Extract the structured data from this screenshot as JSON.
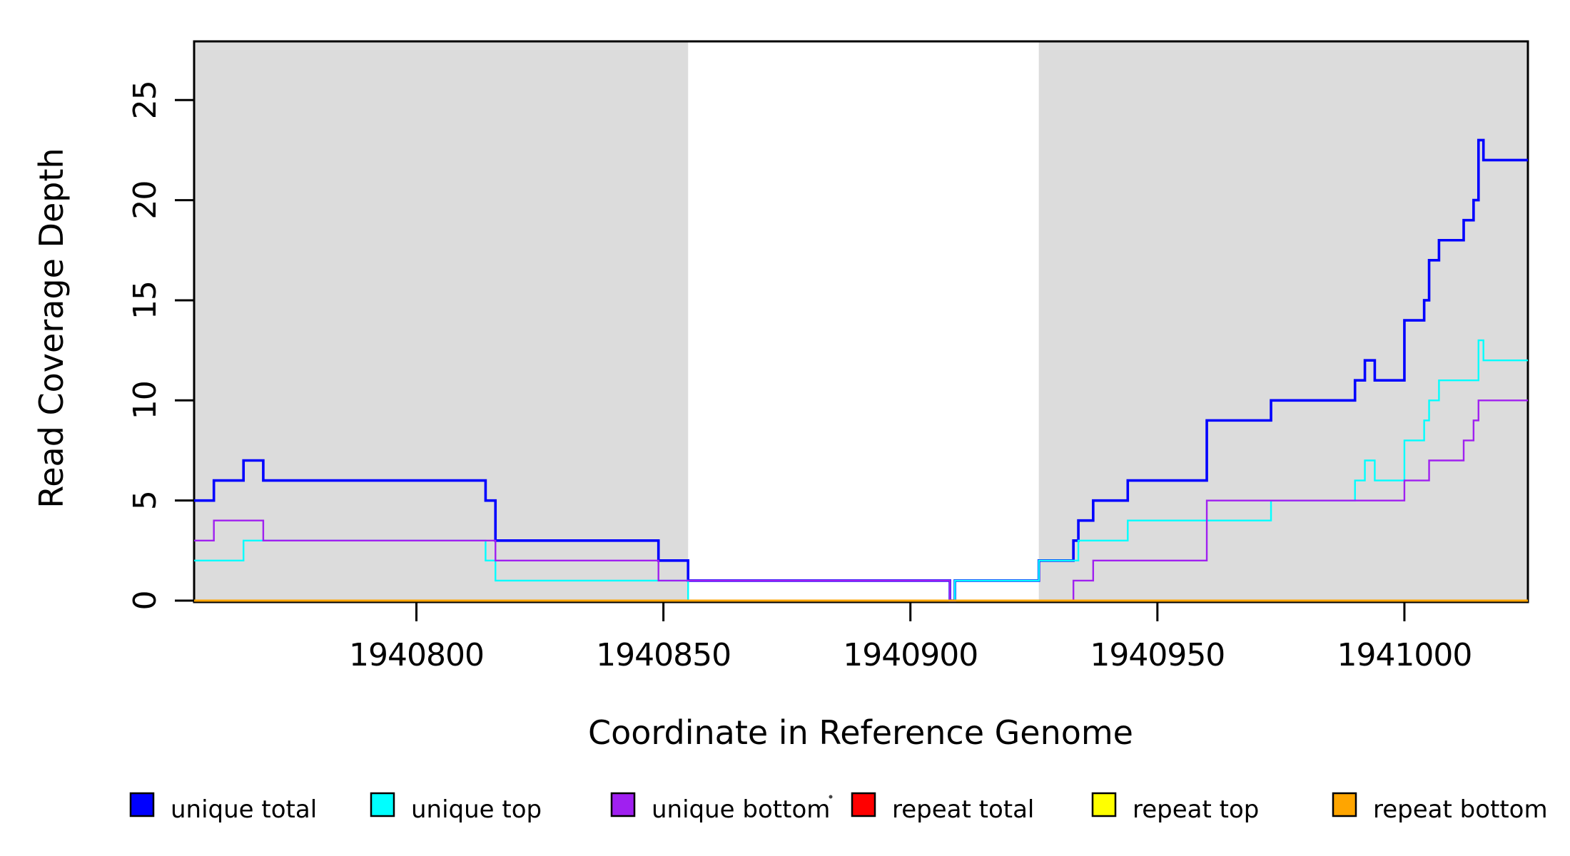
{
  "chart_data": {
    "type": "line",
    "subtype": "step-post",
    "title": "",
    "xlabel": "Coordinate in Reference Genome",
    "ylabel": "Read Coverage Depth",
    "xlim": [
      1940755,
      1941025
    ],
    "ylim": [
      0,
      28
    ],
    "x_ticks": [
      1940800,
      1940850,
      1940900,
      1940950,
      1941000
    ],
    "y_ticks": [
      0,
      5,
      10,
      15,
      20,
      25
    ],
    "grid": false,
    "background_color": "#FFFFFF",
    "plot_border_color": "#000000",
    "shaded_regions": [
      {
        "name": "left-gray-block",
        "x0": 1940755,
        "x1": 1940855,
        "color": "#DCDCDC"
      },
      {
        "name": "right-gray-block",
        "x0": 1940926,
        "x1": 1941025,
        "color": "#DCDCDC"
      }
    ],
    "series": [
      {
        "name": "unique total",
        "color": "#0000FF",
        "line_width": 3.6,
        "points": [
          [
            1940755,
            5
          ],
          [
            1940759,
            6
          ],
          [
            1940765,
            7
          ],
          [
            1940769,
            6
          ],
          [
            1940814,
            5
          ],
          [
            1940816,
            3
          ],
          [
            1940849,
            2
          ],
          [
            1940855,
            1
          ],
          [
            1940908,
            0
          ],
          [
            1940909,
            1
          ],
          [
            1940926,
            2
          ],
          [
            1940933,
            3
          ],
          [
            1940934,
            4
          ],
          [
            1940937,
            5
          ],
          [
            1940944,
            6
          ],
          [
            1940960,
            9
          ],
          [
            1940973,
            10
          ],
          [
            1940990,
            11
          ],
          [
            1940992,
            12
          ],
          [
            1940994,
            11
          ],
          [
            1941000,
            14
          ],
          [
            1941004,
            15
          ],
          [
            1941005,
            17
          ],
          [
            1941007,
            18
          ],
          [
            1941012,
            19
          ],
          [
            1941014,
            20
          ],
          [
            1941015,
            23
          ],
          [
            1941016,
            22
          ]
        ]
      },
      {
        "name": "unique top",
        "color": "#00FFFF",
        "line_width": 2.4,
        "points": [
          [
            1940755,
            2
          ],
          [
            1940765,
            3
          ],
          [
            1940814,
            2
          ],
          [
            1940816,
            1
          ],
          [
            1940855,
            0
          ],
          [
            1940909,
            1
          ],
          [
            1940926,
            2
          ],
          [
            1940934,
            3
          ],
          [
            1940944,
            4
          ],
          [
            1940973,
            5
          ],
          [
            1940990,
            6
          ],
          [
            1940992,
            7
          ],
          [
            1940994,
            6
          ],
          [
            1941000,
            8
          ],
          [
            1941004,
            9
          ],
          [
            1941005,
            10
          ],
          [
            1941007,
            11
          ],
          [
            1941015,
            13
          ],
          [
            1941016,
            12
          ]
        ]
      },
      {
        "name": "unique bottom",
        "color": "#A020F0",
        "line_width": 2.4,
        "points": [
          [
            1940755,
            3
          ],
          [
            1940759,
            4
          ],
          [
            1940769,
            3
          ],
          [
            1940816,
            2
          ],
          [
            1940849,
            1
          ],
          [
            1940908,
            0
          ],
          [
            1940933,
            1
          ],
          [
            1940937,
            2
          ],
          [
            1940960,
            5
          ],
          [
            1941000,
            6
          ],
          [
            1941005,
            7
          ],
          [
            1941012,
            8
          ],
          [
            1941014,
            9
          ],
          [
            1941015,
            10
          ]
        ]
      },
      {
        "name": "repeat total",
        "color": "#FF0000",
        "line_width": 2.4,
        "points": [
          [
            1940755,
            0
          ]
        ]
      },
      {
        "name": "repeat top",
        "color": "#FFFF00",
        "line_width": 2.4,
        "points": [
          [
            1940755,
            0
          ]
        ]
      },
      {
        "name": "repeat bottom",
        "color": "#FFA500",
        "line_width": 3.0,
        "points": [
          [
            1940755,
            0
          ]
        ]
      }
    ],
    "legend": {
      "position": "bottom",
      "items": [
        {
          "label": "unique total",
          "color": "#0000FF"
        },
        {
          "label": "unique top",
          "color": "#00FFFF"
        },
        {
          "label": "unique bottom",
          "color": "#A020F0"
        },
        {
          "label": "repeat total",
          "color": "#FF0000"
        },
        {
          "label": "repeat top",
          "color": "#FFFF00"
        },
        {
          "label": "repeat bottom",
          "color": "#FFA500"
        }
      ]
    }
  }
}
